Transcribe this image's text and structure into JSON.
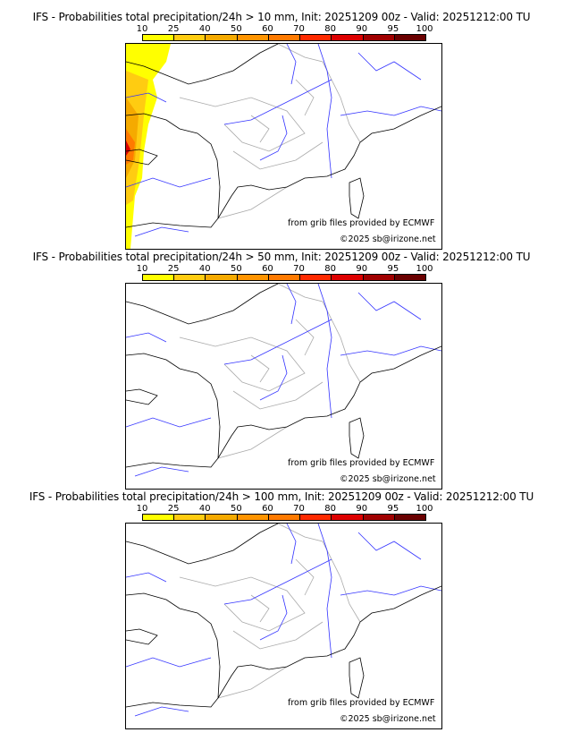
{
  "colorbar": {
    "ticks": [
      "10",
      "25",
      "40",
      "50",
      "60",
      "70",
      "80",
      "90",
      "95",
      "100"
    ],
    "colors": [
      "#ffff00",
      "#ffcc11",
      "#f5aa00",
      "#ff9400",
      "#ff7a00",
      "#ff2a00",
      "#dd0000",
      "#a00000",
      "#6a0000"
    ]
  },
  "panels": [
    {
      "title": "IFS - Probabilities total precipitation/24h > 10 mm, Init: 20251209 00z - Valid: 20251212:00 TU",
      "has_precip": true
    },
    {
      "title": "IFS - Probabilities total precipitation/24h > 50 mm, Init: 20251209 00z - Valid: 20251212:00 TU",
      "has_precip": false
    },
    {
      "title": "IFS - Probabilities total precipitation/24h > 100 mm, Init: 20251209 00z - Valid: 20251212:00 TU",
      "has_precip": false
    }
  ],
  "credits": {
    "source": "from grib files provided by ECMWF",
    "copyright": "©2025 sb@irizone.net"
  },
  "colors": {
    "coast": "#000000",
    "rivers": "#3333ff",
    "borders": "#aaaaaa"
  }
}
